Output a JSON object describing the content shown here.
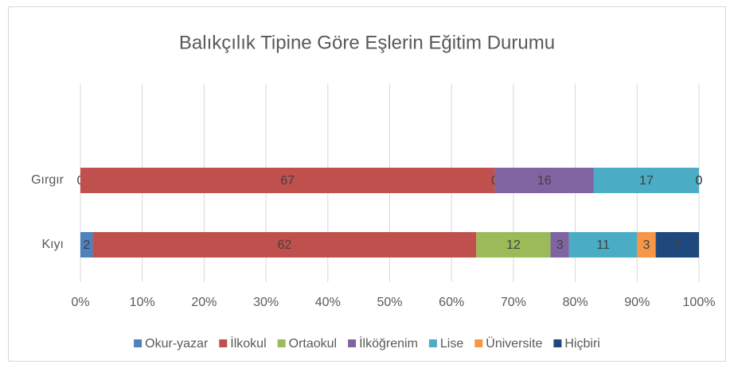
{
  "chart_data": {
    "type": "bar",
    "orientation": "horizontal",
    "stacked": true,
    "title": "Balıkçılık Tipine Göre Eşlerin Eğitim Durumu",
    "categories": [
      "Gırgır",
      "Kıyı"
    ],
    "series": [
      {
        "name": "Okur-yazar",
        "color": "#4f81bd",
        "values": [
          0,
          2
        ]
      },
      {
        "name": "İlkokul",
        "color": "#c0504d",
        "values": [
          67,
          62
        ]
      },
      {
        "name": "Ortaokul",
        "color": "#9bbb59",
        "values": [
          0,
          12
        ]
      },
      {
        "name": "İlköğrenim",
        "color": "#8064a2",
        "values": [
          16,
          3
        ]
      },
      {
        "name": "Lise",
        "color": "#4bacc6",
        "values": [
          17,
          11
        ]
      },
      {
        "name": "Üniversite",
        "color": "#f79646",
        "values": [
          0,
          3
        ]
      },
      {
        "name": "Hiçbiri",
        "color": "#1f497d",
        "values": [
          0,
          7
        ]
      }
    ],
    "xlim": [
      0,
      100
    ],
    "xticks": [
      {
        "value": 0,
        "label": "0%"
      },
      {
        "value": 10,
        "label": "10%"
      },
      {
        "value": 20,
        "label": "20%"
      },
      {
        "value": 30,
        "label": "30%"
      },
      {
        "value": 40,
        "label": "40%"
      },
      {
        "value": 50,
        "label": "50%"
      },
      {
        "value": 60,
        "label": "60%"
      },
      {
        "value": 70,
        "label": "70%"
      },
      {
        "value": 80,
        "label": "80%"
      },
      {
        "value": 90,
        "label": "90%"
      },
      {
        "value": 100,
        "label": "100%"
      }
    ],
    "grid": true,
    "legend": "bottom"
  }
}
